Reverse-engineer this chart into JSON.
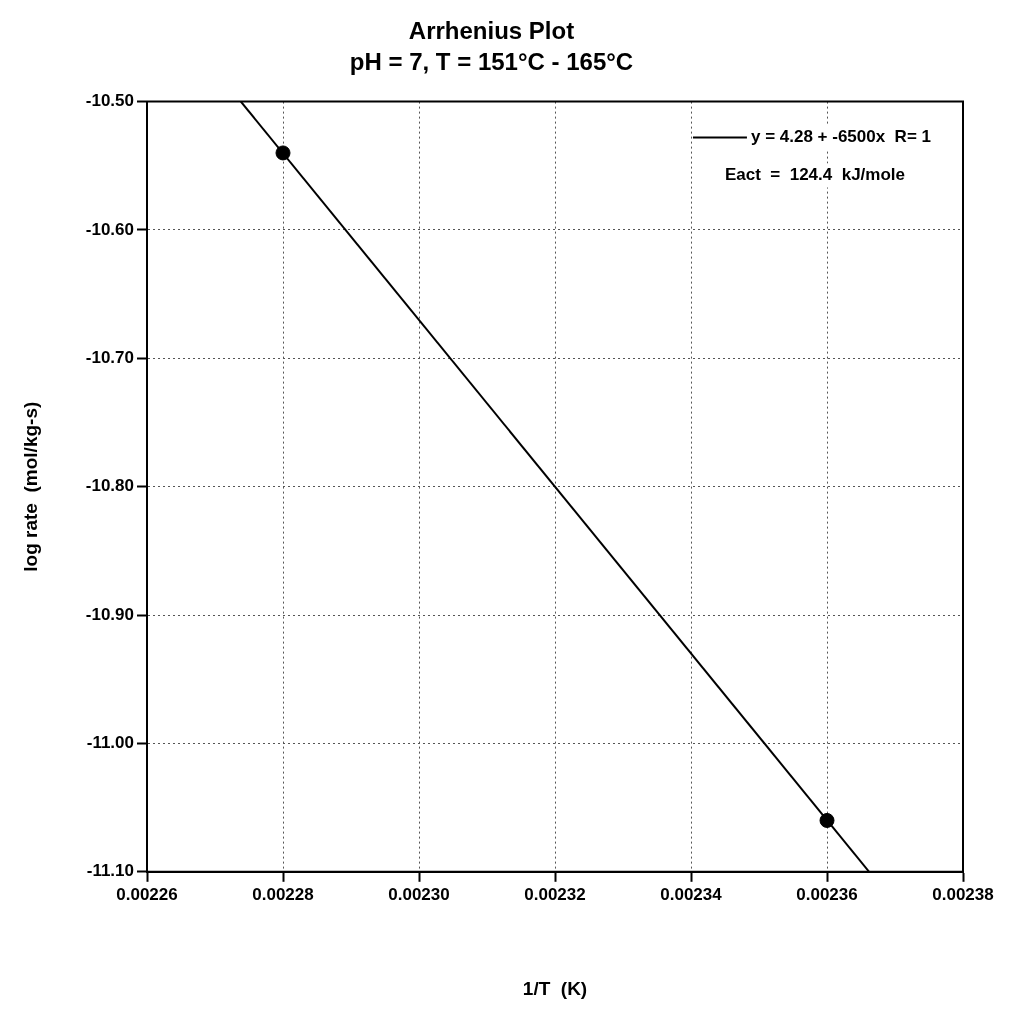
{
  "chart_data": {
    "type": "scatter",
    "title": "Arrhenius Plot",
    "subtitle": "pH = 7, T = 151°C - 165°C",
    "xlabel": "1/T  (K)",
    "ylabel": "log rate  (mol/kg-s)",
    "xlim": [
      0.00226,
      0.00238
    ],
    "xticks": [
      0.00226,
      0.00228,
      {
        "value": 0.0023,
        "label": "0.00230"
      },
      0.00232,
      0.00234,
      0.00236,
      0.00238
    ],
    "ylim": [
      -11.1,
      -10.5
    ],
    "yticks": [
      {
        "value": -11.1,
        "label": "-11.10"
      },
      {
        "value": -11.0,
        "label": "-11.00"
      },
      {
        "value": -10.9,
        "label": "-10.90"
      },
      {
        "value": -10.8,
        "label": "-10.80"
      },
      {
        "value": -10.7,
        "label": "-10.70"
      },
      {
        "value": -10.6,
        "label": "-10.60"
      },
      {
        "value": -10.5,
        "label": "-10.50"
      }
    ],
    "grid": true,
    "legend": "top right",
    "annotations": [
      "Eact  =  124.4  kJ/mole"
    ],
    "series": [
      {
        "color": "#000000",
        "marker": "circle",
        "x": [
          0.00228,
          0.00236
        ],
        "values": [
          -10.54,
          -11.06
        ]
      },
      {
        "type": "line",
        "name": "y = 4.28 + -6500x  R= 1",
        "color": "#000000",
        "line_style": "solid",
        "x": [
          0.0022738,
          0.0023662
        ],
        "values": [
          -10.5,
          -11.1
        ]
      }
    ]
  }
}
